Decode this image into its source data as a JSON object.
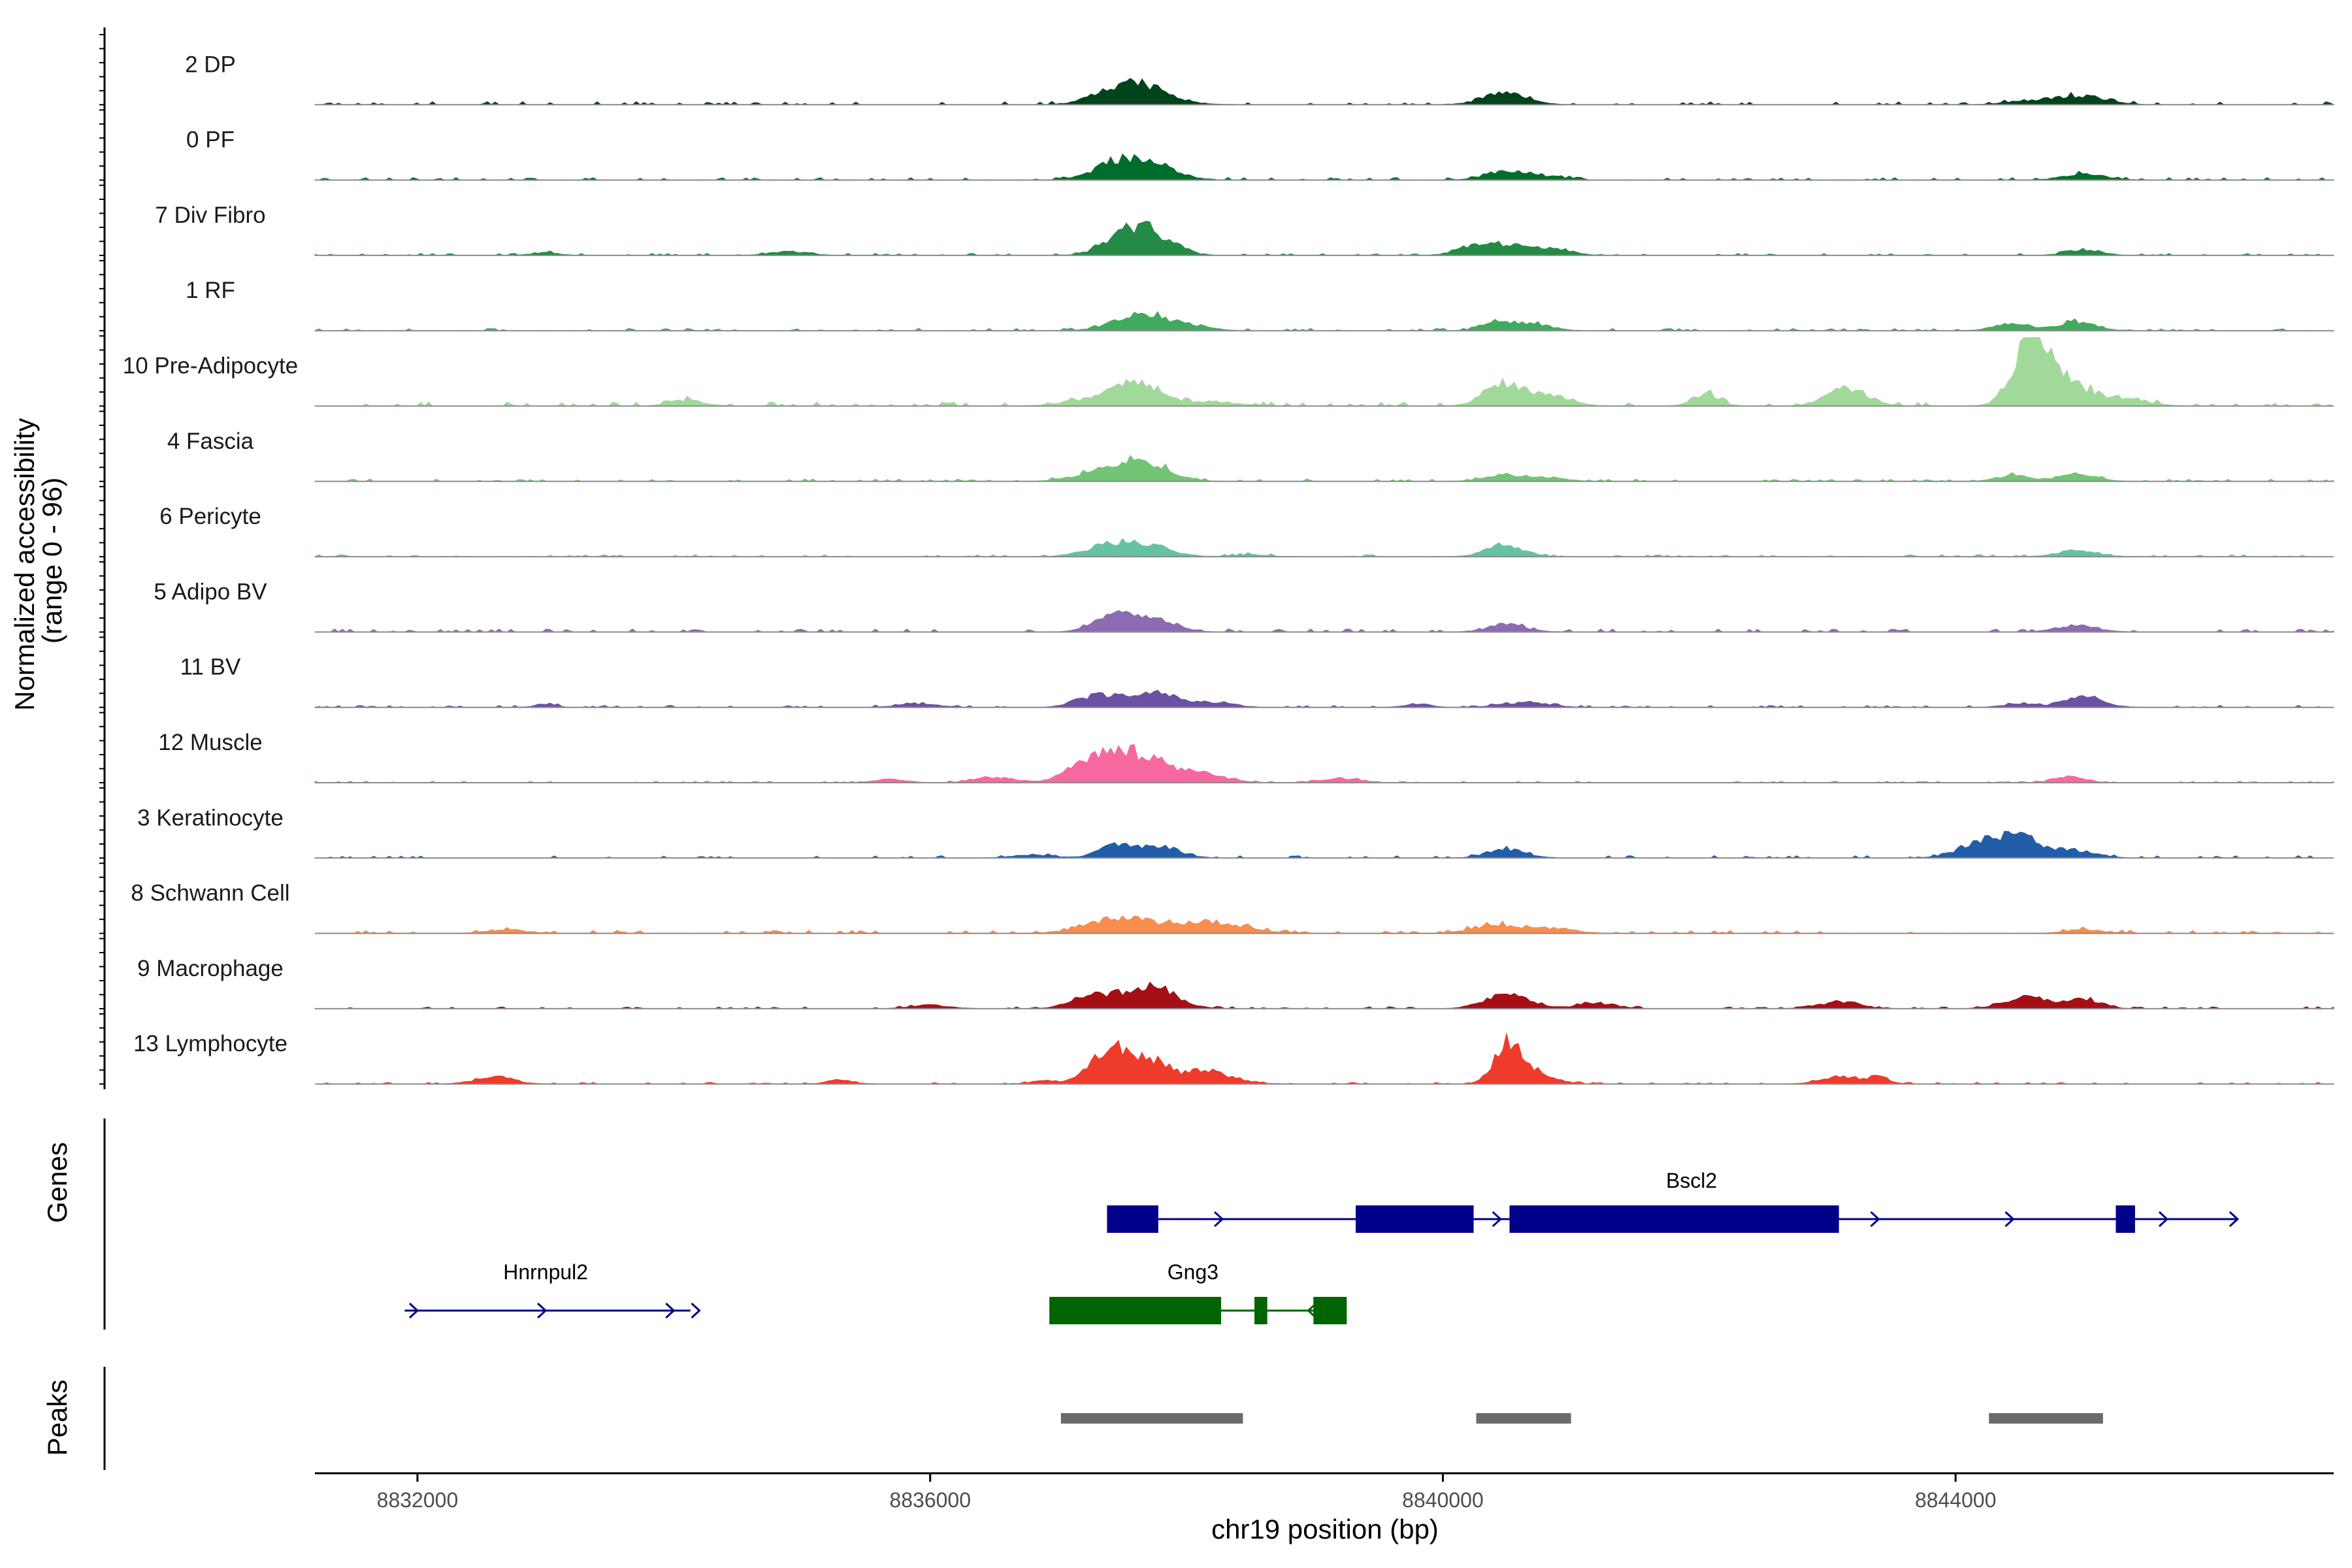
{
  "chart_data": {
    "type": "area",
    "title": "",
    "ylabel": "Normalized accessibility\n(range 0 - 96)",
    "ylim": [
      0,
      96
    ],
    "xlabel": "chr19 position (bp)",
    "xlim": [
      8831200,
      8846950
    ],
    "xticks": [
      8832000,
      8836000,
      8840000,
      8844000
    ],
    "xtick_labels": [
      "8832000",
      "8836000",
      "8840000",
      "8844000"
    ],
    "tracks": [
      {
        "name": "2 DP",
        "color": "#00441b",
        "peaks": [
          [
            8837650,
            0.25,
            220
          ],
          [
            8837420,
            0.12,
            180
          ],
          [
            8840480,
            0.16,
            170
          ],
          [
            8845000,
            0.12,
            180
          ],
          [
            8844600,
            0.06,
            180
          ]
        ],
        "baseline": 0.015
      },
      {
        "name": "0 PF",
        "color": "#006d2c",
        "peaks": [
          [
            8837650,
            0.26,
            220
          ],
          [
            8837400,
            0.12,
            170
          ],
          [
            8840500,
            0.14,
            150
          ],
          [
            8840850,
            0.05,
            120
          ],
          [
            8845000,
            0.08,
            160
          ]
        ],
        "baseline": 0.012
      },
      {
        "name": "7 Div Fibro",
        "color": "#238b45",
        "peaks": [
          [
            8837580,
            0.4,
            180
          ],
          [
            8837850,
            0.12,
            140
          ],
          [
            8840450,
            0.16,
            170
          ],
          [
            8840850,
            0.1,
            150
          ],
          [
            8840200,
            0.08,
            120
          ],
          [
            8845000,
            0.09,
            130
          ],
          [
            8834900,
            0.05,
            150
          ],
          [
            8833000,
            0.04,
            100
          ]
        ],
        "baseline": 0.01
      },
      {
        "name": "1 RF",
        "color": "#41ab5d",
        "peaks": [
          [
            8837650,
            0.24,
            200
          ],
          [
            8838050,
            0.06,
            150
          ],
          [
            8840450,
            0.14,
            130
          ],
          [
            8840750,
            0.08,
            120
          ],
          [
            8844450,
            0.1,
            140
          ],
          [
            8844950,
            0.12,
            150
          ]
        ],
        "baseline": 0.012
      },
      {
        "name": "10 Pre-Adipocyte",
        "color": "#a1d99b",
        "peaks": [
          [
            8844580,
            0.9,
            130
          ],
          [
            8844850,
            0.35,
            200
          ],
          [
            8837620,
            0.34,
            180
          ],
          [
            8840480,
            0.34,
            150
          ],
          [
            8840850,
            0.15,
            150
          ],
          [
            8843150,
            0.25,
            160
          ],
          [
            8842050,
            0.18,
            100
          ],
          [
            8834100,
            0.08,
            130
          ],
          [
            8845350,
            0.1,
            160
          ],
          [
            8838200,
            0.06,
            200
          ],
          [
            8837200,
            0.08,
            180
          ]
        ],
        "baseline": 0.02
      },
      {
        "name": "4 Fascia",
        "color": "#74c476",
        "peaks": [
          [
            8837650,
            0.26,
            200
          ],
          [
            8837350,
            0.14,
            200
          ],
          [
            8840500,
            0.1,
            150
          ],
          [
            8840850,
            0.05,
            120
          ],
          [
            8844450,
            0.08,
            130
          ],
          [
            8844950,
            0.09,
            150
          ]
        ],
        "baseline": 0.012
      },
      {
        "name": "6 Pericyte",
        "color": "#66c2a4",
        "peaks": [
          [
            8837650,
            0.18,
            200
          ],
          [
            8837350,
            0.12,
            170
          ],
          [
            8840480,
            0.18,
            140
          ],
          [
            8844950,
            0.1,
            150
          ],
          [
            8838500,
            0.03,
            120
          ]
        ],
        "baseline": 0.01
      },
      {
        "name": "5 Adipo BV",
        "color": "#8c6bb1",
        "peaks": [
          [
            8837450,
            0.22,
            160
          ],
          [
            8837750,
            0.16,
            170
          ],
          [
            8840500,
            0.12,
            140
          ],
          [
            8844950,
            0.1,
            150
          ]
        ],
        "baseline": 0.015
      },
      {
        "name": "11 BV",
        "color": "#6a51a3",
        "peaks": [
          [
            8837300,
            0.16,
            150
          ],
          [
            8837750,
            0.2,
            200
          ],
          [
            8838250,
            0.07,
            130
          ],
          [
            8840650,
            0.07,
            180
          ],
          [
            8845000,
            0.14,
            150
          ],
          [
            8844500,
            0.05,
            130
          ],
          [
            8833000,
            0.05,
            80
          ],
          [
            8835900,
            0.05,
            150
          ],
          [
            8839800,
            0.05,
            100
          ]
        ],
        "baseline": 0.01
      },
      {
        "name": "12 Muscle",
        "color": "#f768a1",
        "peaks": [
          [
            8837550,
            0.42,
            250
          ],
          [
            8837250,
            0.18,
            180
          ],
          [
            8838100,
            0.12,
            200
          ],
          [
            8836500,
            0.08,
            150
          ],
          [
            8839200,
            0.06,
            150
          ],
          [
            8844900,
            0.08,
            120
          ],
          [
            8835700,
            0.05,
            120
          ]
        ],
        "baseline": 0.008
      },
      {
        "name": "3 Keratinocyte",
        "color": "#225ea8",
        "peaks": [
          [
            8844450,
            0.34,
            200
          ],
          [
            8837450,
            0.2,
            130
          ],
          [
            8837800,
            0.16,
            150
          ],
          [
            8840500,
            0.12,
            150
          ],
          [
            8844100,
            0.1,
            150
          ],
          [
            8844950,
            0.1,
            150
          ],
          [
            8836800,
            0.05,
            150
          ]
        ],
        "baseline": 0.012
      },
      {
        "name": "8 Schwann Cell",
        "color": "#f78d4f",
        "peaks": [
          [
            8837500,
            0.22,
            250
          ],
          [
            8838200,
            0.16,
            250
          ],
          [
            8840450,
            0.12,
            200
          ],
          [
            8840900,
            0.06,
            150
          ],
          [
            8845000,
            0.05,
            150
          ],
          [
            8832700,
            0.05,
            150
          ]
        ],
        "baseline": 0.015
      },
      {
        "name": "9 Macrophage",
        "color": "#a50f15",
        "peaks": [
          [
            8837700,
            0.34,
            200
          ],
          [
            8837250,
            0.18,
            150
          ],
          [
            8840500,
            0.2,
            170
          ],
          [
            8844550,
            0.16,
            170
          ],
          [
            8845000,
            0.14,
            130
          ],
          [
            8843100,
            0.1,
            150
          ],
          [
            8841200,
            0.08,
            150
          ],
          [
            8836000,
            0.05,
            150
          ]
        ],
        "baseline": 0.01
      },
      {
        "name": "13 Lymphocyte",
        "color": "#ef3b2c",
        "peaks": [
          [
            8840500,
            0.58,
            100
          ],
          [
            8840700,
            0.18,
            150
          ],
          [
            8837400,
            0.46,
            150
          ],
          [
            8837700,
            0.32,
            150
          ],
          [
            8838150,
            0.18,
            200
          ],
          [
            8832600,
            0.1,
            150
          ],
          [
            8843100,
            0.1,
            150
          ],
          [
            8843400,
            0.1,
            80
          ],
          [
            8835300,
            0.06,
            100
          ],
          [
            8836900,
            0.05,
            100
          ]
        ],
        "baseline": 0.008
      }
    ],
    "genes": {
      "title": "Genes",
      "items": [
        {
          "name": "Bscl2",
          "color": "#00008b",
          "strand": "+",
          "row": 0,
          "start": 8837380,
          "end": 8846200,
          "label_pos": 8841940,
          "exons": [
            [
              8837380,
              8837780
            ],
            [
              8839320,
              8840240
            ],
            [
              8840520,
              8843090
            ],
            [
              8845250,
              8845400
            ]
          ],
          "arrows": [
            8838280,
            8840450,
            8843400,
            8844450,
            8845650,
            8846200
          ]
        },
        {
          "name": "Hnrnpul2",
          "color": "#00008b",
          "strand": "+",
          "row": 1,
          "start": 8831900,
          "end": 8834130,
          "label_pos": 8833000,
          "exons": [],
          "arrows": [
            8832000,
            8833000,
            8834000,
            8834200
          ]
        },
        {
          "name": "Gng3",
          "color": "#006400",
          "strand": "-",
          "row": 1,
          "start": 8836930,
          "end": 8839250,
          "label_pos": 8838050,
          "exons": [
            [
              8836930,
              8838270
            ],
            [
              8838530,
              8838630
            ],
            [
              8838990,
              8839250
            ]
          ],
          "arrows": [
            8838950
          ]
        }
      ]
    },
    "peaks": {
      "title": "Peaks",
      "color": "#6b6b6b",
      "regions": [
        [
          8837020,
          8838440
        ],
        [
          8840260,
          8841000
        ],
        [
          8844260,
          8845150
        ]
      ]
    }
  }
}
